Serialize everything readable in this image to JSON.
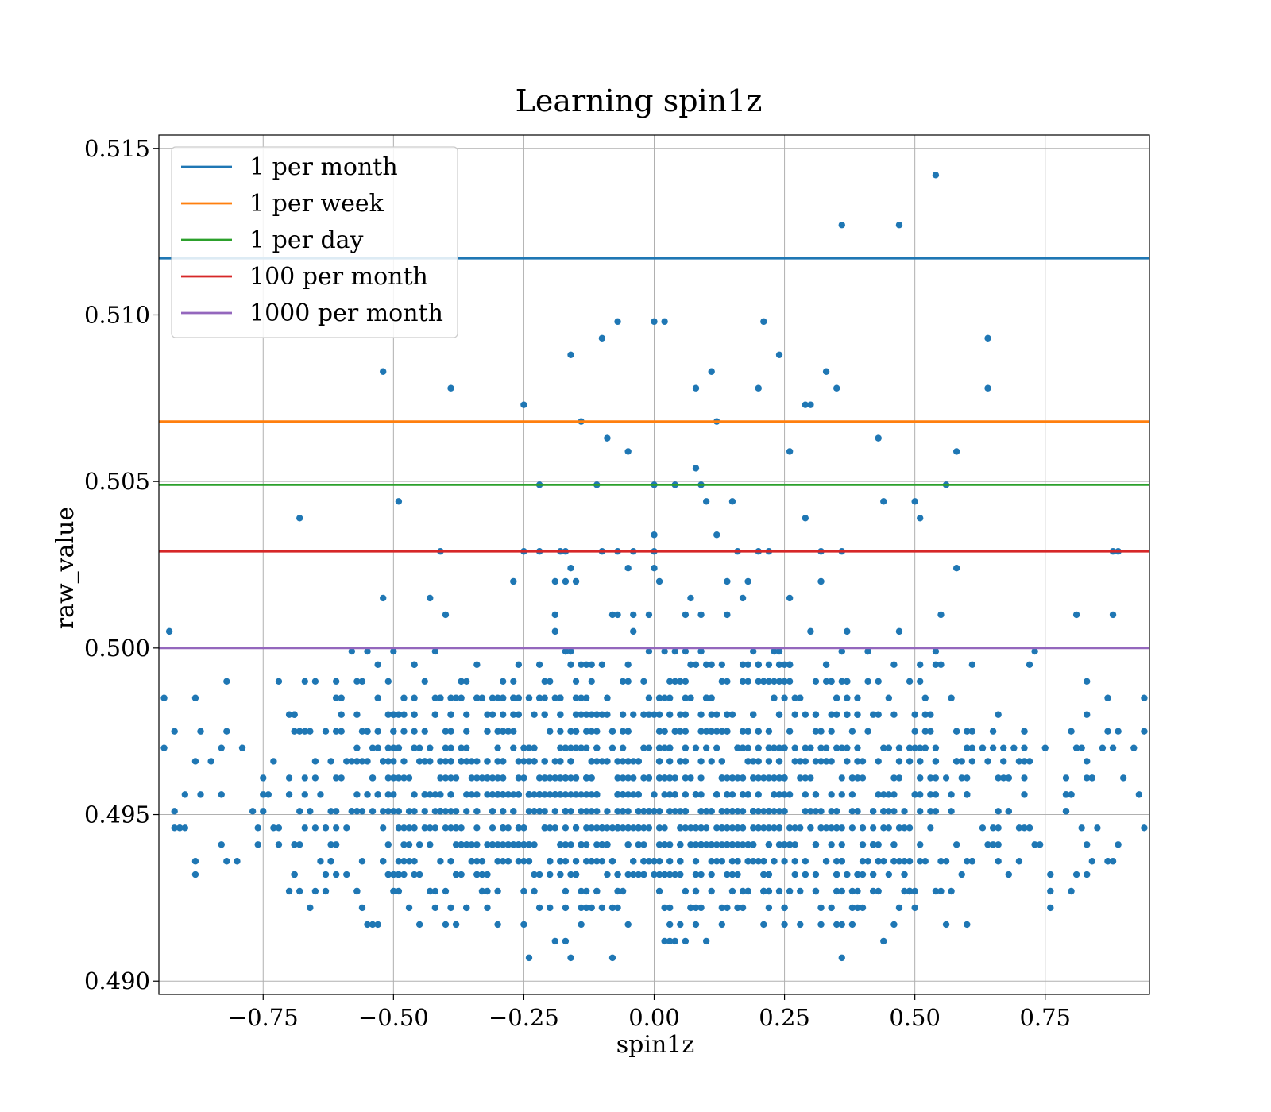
{
  "chart_data": {
    "type": "scatter",
    "title": "Learning spin1z",
    "xlabel": "spin1z",
    "ylabel": "raw_value",
    "xlim": [
      -0.95,
      0.95
    ],
    "ylim": [
      0.4896,
      0.5154
    ],
    "xticks": [
      -0.75,
      -0.5,
      -0.25,
      0.0,
      0.25,
      0.5,
      0.75
    ],
    "xtick_labels": [
      "−0.75",
      "−0.50",
      "−0.25",
      "0.00",
      "0.25",
      "0.50",
      "0.75"
    ],
    "yticks": [
      0.49,
      0.495,
      0.5,
      0.505,
      0.51,
      0.515
    ],
    "ytick_labels": [
      "0.490",
      "0.495",
      "0.500",
      "0.505",
      "0.510",
      "0.515"
    ],
    "grid": true,
    "legend_position": "top-left",
    "point_color": "#1f77b4",
    "hlines": [
      {
        "name": "1 per month",
        "y": 0.5117,
        "color": "#1f77b4"
      },
      {
        "name": "1 per week",
        "y": 0.5068,
        "color": "#ff7f0e"
      },
      {
        "name": "1 per day",
        "y": 0.5049,
        "color": "#2ca02c"
      },
      {
        "name": "100 per month",
        "y": 0.5029,
        "color": "#d62728"
      },
      {
        "name": "1000 per month",
        "y": 0.5,
        "color": "#9467bd"
      }
    ],
    "outliers": [
      [
        0.54,
        0.5142
      ],
      [
        0.36,
        0.5127
      ],
      [
        0.47,
        0.5127
      ],
      [
        -0.07,
        0.5098
      ],
      [
        0.0,
        0.5098
      ],
      [
        0.02,
        0.5098
      ],
      [
        0.21,
        0.5098
      ],
      [
        -0.1,
        0.5093
      ],
      [
        0.64,
        0.5093
      ],
      [
        -0.16,
        0.5088
      ],
      [
        0.24,
        0.5088
      ],
      [
        -0.52,
        0.5083
      ],
      [
        0.11,
        0.5083
      ],
      [
        0.33,
        0.5083
      ],
      [
        -0.39,
        0.5078
      ],
      [
        0.08,
        0.5078
      ],
      [
        0.2,
        0.5078
      ],
      [
        0.35,
        0.5078
      ],
      [
        0.64,
        0.5078
      ],
      [
        -0.25,
        0.5073
      ],
      [
        0.29,
        0.5073
      ],
      [
        0.3,
        0.5073
      ],
      [
        -0.14,
        0.5068
      ],
      [
        0.12,
        0.5068
      ],
      [
        -0.09,
        0.5063
      ],
      [
        0.43,
        0.5063
      ],
      [
        -0.05,
        0.5059
      ],
      [
        0.26,
        0.5059
      ],
      [
        0.58,
        0.5059
      ],
      [
        0.08,
        0.5054
      ],
      [
        -0.22,
        0.5049
      ],
      [
        -0.11,
        0.5049
      ],
      [
        0.0,
        0.5049
      ],
      [
        0.04,
        0.5049
      ],
      [
        0.09,
        0.5049
      ],
      [
        0.56,
        0.5049
      ],
      [
        -0.49,
        0.5044
      ],
      [
        0.1,
        0.5044
      ],
      [
        0.15,
        0.5044
      ],
      [
        0.44,
        0.5044
      ],
      [
        0.5,
        0.5044
      ],
      [
        -0.68,
        0.5039
      ],
      [
        0.29,
        0.5039
      ],
      [
        0.51,
        0.5039
      ],
      [
        0.0,
        0.5034
      ],
      [
        0.12,
        0.5034
      ],
      [
        -0.41,
        0.5029
      ],
      [
        -0.25,
        0.5029
      ],
      [
        -0.22,
        0.5029
      ],
      [
        -0.18,
        0.5029
      ],
      [
        -0.17,
        0.5029
      ],
      [
        -0.1,
        0.5029
      ],
      [
        -0.07,
        0.5029
      ],
      [
        -0.04,
        0.5029
      ],
      [
        0.0,
        0.5029
      ],
      [
        0.16,
        0.5029
      ],
      [
        0.2,
        0.5029
      ],
      [
        0.22,
        0.5029
      ],
      [
        0.32,
        0.5029
      ],
      [
        0.36,
        0.5029
      ],
      [
        0.88,
        0.5029
      ],
      [
        0.89,
        0.5029
      ],
      [
        -0.16,
        0.5024
      ],
      [
        -0.05,
        0.5024
      ],
      [
        0.0,
        0.5024
      ],
      [
        0.58,
        0.5024
      ],
      [
        -0.27,
        0.502
      ],
      [
        -0.19,
        0.502
      ],
      [
        -0.17,
        0.502
      ],
      [
        -0.15,
        0.502
      ],
      [
        0.01,
        0.502
      ],
      [
        0.14,
        0.502
      ],
      [
        0.18,
        0.502
      ],
      [
        0.32,
        0.502
      ],
      [
        -0.52,
        0.5015
      ],
      [
        -0.43,
        0.5015
      ],
      [
        0.07,
        0.5015
      ],
      [
        0.17,
        0.5015
      ],
      [
        0.26,
        0.5015
      ],
      [
        -0.4,
        0.501
      ],
      [
        -0.19,
        0.501
      ],
      [
        -0.08,
        0.501
      ],
      [
        -0.07,
        0.501
      ],
      [
        -0.04,
        0.501
      ],
      [
        -0.01,
        0.501
      ],
      [
        0.06,
        0.501
      ],
      [
        0.09,
        0.501
      ],
      [
        0.14,
        0.501
      ],
      [
        0.55,
        0.501
      ],
      [
        0.81,
        0.501
      ],
      [
        0.88,
        0.501
      ],
      [
        -0.93,
        0.5005
      ],
      [
        -0.19,
        0.5005
      ],
      [
        -0.04,
        0.5005
      ],
      [
        0.3,
        0.5005
      ],
      [
        0.37,
        0.5005
      ],
      [
        0.47,
        0.5005
      ]
    ],
    "cluster_summary": {
      "y_values": [
        0.4999,
        0.4995,
        0.499,
        0.4985,
        0.498,
        0.4975,
        0.497,
        0.4966,
        0.4961,
        0.4956,
        0.4951,
        0.4946,
        0.4941,
        0.4936,
        0.4932,
        0.4927,
        0.4922,
        0.4917,
        0.4912,
        0.4907
      ],
      "weights": [
        0.28,
        0.45,
        0.62,
        0.78,
        0.92,
        1.05,
        1.25,
        1.4,
        1.55,
        1.65,
        1.7,
        1.65,
        1.5,
        1.25,
        1.05,
        0.72,
        0.48,
        0.3,
        0.1,
        0.05
      ]
    }
  }
}
